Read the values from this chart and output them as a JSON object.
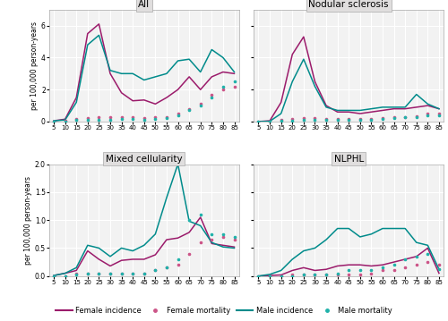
{
  "x_ticks": [
    5,
    10,
    15,
    20,
    25,
    30,
    35,
    40,
    45,
    50,
    55,
    60,
    65,
    70,
    75,
    80,
    85
  ],
  "panels": [
    {
      "title": "All",
      "ylim": [
        0,
        7
      ],
      "yticks": [
        0,
        2,
        4,
        6
      ],
      "female_incidence": [
        0.05,
        0.15,
        1.5,
        5.5,
        6.1,
        3.0,
        1.8,
        1.3,
        1.35,
        1.1,
        1.5,
        2.0,
        2.8,
        2.0,
        2.8,
        3.1,
        3.0
      ],
      "male_incidence": [
        0.05,
        0.1,
        1.2,
        4.8,
        5.4,
        3.2,
        3.0,
        3.0,
        2.6,
        2.8,
        3.0,
        3.8,
        3.9,
        3.1,
        4.5,
        4.0,
        3.1
      ],
      "female_mortality": [
        0.02,
        0.05,
        0.15,
        0.2,
        0.25,
        0.25,
        0.25,
        0.25,
        0.22,
        0.25,
        0.3,
        0.5,
        0.8,
        1.1,
        1.7,
        2.0,
        2.2
      ],
      "male_mortality": [
        0.02,
        0.02,
        0.1,
        0.1,
        0.12,
        0.1,
        0.15,
        0.15,
        0.12,
        0.15,
        0.2,
        0.4,
        0.7,
        1.0,
        1.5,
        2.2,
        2.5
      ]
    },
    {
      "title": "Nodular sclerosis",
      "ylim": [
        0,
        7
      ],
      "yticks": [
        0,
        2,
        4,
        6
      ],
      "female_incidence": [
        0.0,
        0.05,
        1.2,
        4.2,
        5.3,
        2.5,
        1.0,
        0.6,
        0.6,
        0.5,
        0.6,
        0.7,
        0.8,
        0.8,
        0.9,
        1.0,
        0.8
      ],
      "male_incidence": [
        0.0,
        0.02,
        0.5,
        2.5,
        3.9,
        2.2,
        0.9,
        0.7,
        0.7,
        0.7,
        0.8,
        0.9,
        0.9,
        0.9,
        1.7,
        1.1,
        0.8
      ],
      "female_mortality": [
        0.0,
        0.02,
        0.1,
        0.15,
        0.2,
        0.2,
        0.15,
        0.15,
        0.15,
        0.15,
        0.15,
        0.2,
        0.25,
        0.3,
        0.35,
        0.5,
        0.5
      ],
      "male_mortality": [
        0.0,
        0.02,
        0.05,
        0.05,
        0.1,
        0.1,
        0.1,
        0.1,
        0.1,
        0.1,
        0.1,
        0.15,
        0.2,
        0.25,
        0.3,
        0.4,
        0.4
      ]
    },
    {
      "title": "Mixed cellularity",
      "ylim": [
        0,
        2.0
      ],
      "yticks": [
        0.0,
        0.5,
        1.0,
        1.5,
        2.0
      ],
      "female_incidence": [
        0.01,
        0.05,
        0.1,
        0.45,
        0.3,
        0.18,
        0.28,
        0.3,
        0.3,
        0.38,
        0.65,
        0.68,
        0.78,
        1.05,
        0.58,
        0.55,
        0.52
      ],
      "male_incidence": [
        0.01,
        0.05,
        0.15,
        0.55,
        0.5,
        0.35,
        0.5,
        0.45,
        0.55,
        0.75,
        1.4,
        2.0,
        0.98,
        0.9,
        0.6,
        0.52,
        0.5
      ],
      "female_mortality": [
        0.0,
        0.0,
        0.05,
        0.05,
        0.05,
        0.05,
        0.05,
        0.05,
        0.05,
        0.1,
        0.15,
        0.2,
        0.4,
        0.6,
        0.65,
        0.7,
        0.65
      ],
      "male_mortality": [
        0.0,
        0.0,
        0.02,
        0.05,
        0.05,
        0.05,
        0.05,
        0.05,
        0.05,
        0.1,
        0.15,
        0.3,
        1.0,
        1.1,
        0.75,
        0.75,
        0.7
      ]
    },
    {
      "title": "NLPHL",
      "ylim": [
        0,
        2.0
      ],
      "yticks": [
        0.0,
        0.5,
        1.0,
        1.5,
        2.0
      ],
      "female_incidence": [
        0.0,
        0.01,
        0.02,
        0.1,
        0.15,
        0.1,
        0.12,
        0.18,
        0.2,
        0.2,
        0.18,
        0.2,
        0.25,
        0.3,
        0.35,
        0.5,
        0.05
      ],
      "male_incidence": [
        0.0,
        0.03,
        0.1,
        0.3,
        0.45,
        0.5,
        0.65,
        0.85,
        0.85,
        0.7,
        0.75,
        0.85,
        0.85,
        0.85,
        0.6,
        0.55,
        0.12
      ],
      "female_mortality": [
        0.0,
        0.0,
        0.0,
        0.02,
        0.02,
        0.02,
        0.02,
        0.02,
        0.02,
        0.03,
        0.05,
        0.1,
        0.1,
        0.15,
        0.2,
        0.25,
        0.2
      ],
      "male_mortality": [
        0.0,
        0.0,
        0.0,
        0.0,
        0.02,
        0.02,
        0.02,
        0.05,
        0.1,
        0.1,
        0.1,
        0.15,
        0.2,
        0.3,
        0.35,
        0.4,
        0.12
      ]
    }
  ],
  "female_incidence_color": "#9B1B6B",
  "male_incidence_color": "#008B8B",
  "female_mortality_color": "#CC5588",
  "male_mortality_color": "#20B2AA",
  "panel_bg": "#E0DEDE",
  "plot_bg": "#F2F2F2",
  "grid_color": "#FFFFFF",
  "ylabel": "per 100,000 person-years"
}
